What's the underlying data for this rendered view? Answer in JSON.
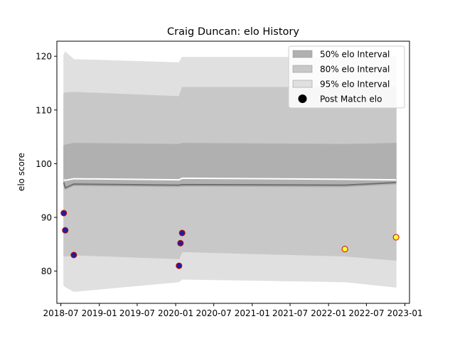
{
  "chart_data": {
    "type": "area",
    "title": "Craig Duncan: elo History",
    "xlabel": "",
    "ylabel": "elo score",
    "xlim": [
      "2018-06-12",
      "2023-01-23"
    ],
    "ylim": [
      74.0,
      122.8
    ],
    "x_ticks": [
      "2018-07",
      "2019-01",
      "2019-07",
      "2020-01",
      "2020-07",
      "2021-01",
      "2021-07",
      "2022-01",
      "2022-07",
      "2023-01"
    ],
    "y_ticks": [
      80,
      90,
      100,
      110,
      120
    ],
    "grid": false,
    "legend_position": "top-right",
    "legend": [
      {
        "label": "50% elo Interval",
        "kind": "band",
        "color": "#b0b0b0"
      },
      {
        "label": "80% elo Interval",
        "kind": "band",
        "color": "#c8c8c8"
      },
      {
        "label": "95% elo Interval",
        "kind": "band",
        "color": "#e0e0e0"
      },
      {
        "label": "Post Match elo",
        "kind": "marker",
        "color": "#000000"
      }
    ],
    "dates": [
      "2018-07-15",
      "2018-07-22",
      "2018-09-01",
      "2020-01-17",
      "2020-02-01",
      "2022-03-20",
      "2022-11-20"
    ],
    "mean": [
      96.5,
      95.5,
      96.2,
      96.0,
      96.1,
      96.0,
      96.5
    ],
    "band_50": {
      "lower": [
        96.2,
        95.2,
        95.9,
        95.7,
        95.8,
        95.7,
        96.2
      ],
      "upper": [
        103.4,
        103.5,
        103.8,
        103.6,
        103.8,
        103.6,
        103.8
      ]
    },
    "band_80": {
      "lower": [
        82.8,
        82.8,
        83.0,
        82.3,
        83.6,
        82.8,
        82.0
      ],
      "upper": [
        113.0,
        113.2,
        113.3,
        112.5,
        114.2,
        114.2,
        114.3
      ]
    },
    "band_95": {
      "lower": [
        77.3,
        77.1,
        76.2,
        78.0,
        78.5,
        78.0,
        77.0
      ],
      "upper": [
        120.2,
        120.8,
        119.4,
        118.8,
        119.8,
        119.8,
        120.0
      ]
    },
    "separator": [
      97.0,
      96.9,
      97.2,
      97.0,
      97.3,
      97.1,
      97.0
    ],
    "series": [
      {
        "name": "Post Match elo",
        "points": [
          {
            "x": "2018-07-15",
            "y": 90.8,
            "style": "past"
          },
          {
            "x": "2018-07-22",
            "y": 87.6,
            "style": "past"
          },
          {
            "x": "2018-09-01",
            "y": 83.0,
            "style": "past"
          },
          {
            "x": "2020-01-17",
            "y": 81.0,
            "style": "past"
          },
          {
            "x": "2020-01-24",
            "y": 85.2,
            "style": "past"
          },
          {
            "x": "2020-02-01",
            "y": 87.1,
            "style": "past"
          },
          {
            "x": "2022-03-20",
            "y": 84.1,
            "style": "recent"
          },
          {
            "x": "2022-11-20",
            "y": 86.3,
            "style": "recent"
          }
        ]
      }
    ],
    "marker_styles": {
      "past": {
        "fill": "#1f1fa0",
        "stroke": "#cc0000"
      },
      "recent": {
        "fill": "#ffff33",
        "stroke": "#cc0000"
      }
    }
  }
}
